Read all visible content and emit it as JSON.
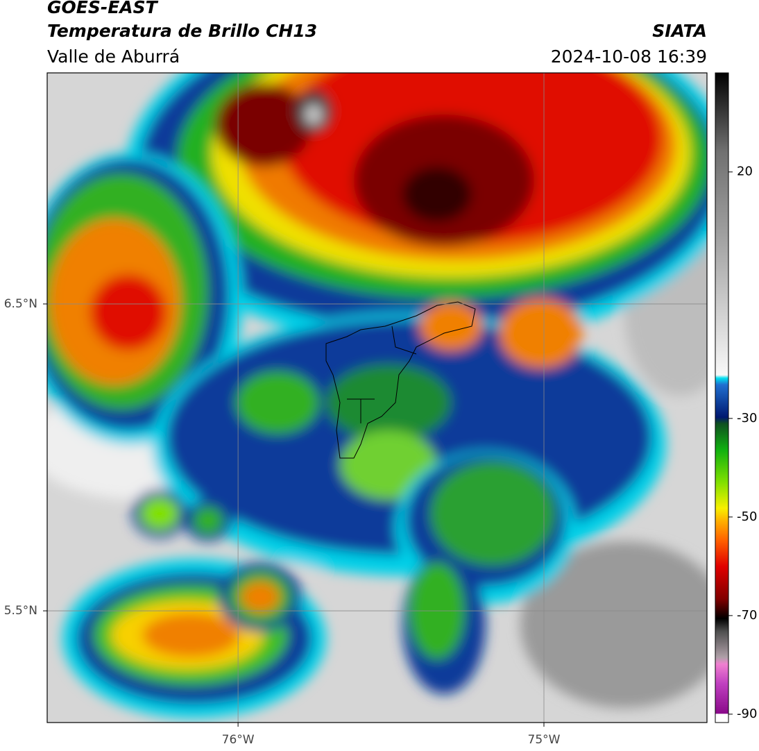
{
  "header": {
    "title": "GOES-EAST",
    "subtitle": "Temperatura de Brillo CH13",
    "region": "Valle de Aburrá",
    "source": "SIATA",
    "datetime": "2024-10-08 16:39"
  },
  "map": {
    "xlim": [
      -76.624,
      -74.467
    ],
    "ylim": [
      5.136,
      7.253
    ],
    "xticks": [
      {
        "value": -76,
        "label": "76°W"
      },
      {
        "value": -75,
        "label": "75°W"
      }
    ],
    "yticks": [
      {
        "value": 6.5,
        "label": "6.5°N"
      },
      {
        "value": 5.5,
        "label": "5.5°N"
      }
    ],
    "grid": true
  },
  "colorbar": {
    "lim": [
      -91.7,
      40.1
    ],
    "ticks": [
      20,
      -30,
      -50,
      -70,
      -90
    ]
  }
}
